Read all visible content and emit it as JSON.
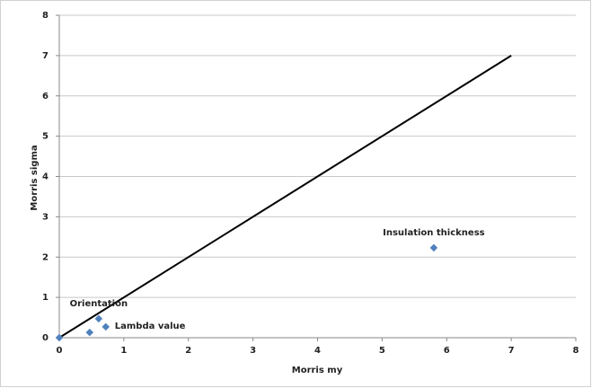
{
  "chart_data": {
    "type": "scatter",
    "x_label": "Morris my",
    "y_label": "Morris sigma",
    "xlim": [
      0,
      8
    ],
    "ylim": [
      0,
      8
    ],
    "xticks": [
      0,
      1,
      2,
      3,
      4,
      5,
      6,
      7,
      8
    ],
    "yticks": [
      0,
      1,
      2,
      3,
      4,
      5,
      6,
      7,
      8
    ],
    "grid": true,
    "series": [
      {
        "type": "line",
        "color": "#000000",
        "x": [
          0,
          7
        ],
        "values": [
          0,
          7
        ]
      },
      {
        "type": "scatter",
        "color": "#4f81bd",
        "x": [
          0,
          0.47,
          0.61,
          0.72,
          5.8
        ],
        "values": [
          0,
          0.13,
          0.47,
          0.27,
          2.23
        ],
        "point_labels": [
          null,
          null,
          "Orientation",
          "Lambda value",
          "Insulation thickness"
        ]
      }
    ]
  }
}
